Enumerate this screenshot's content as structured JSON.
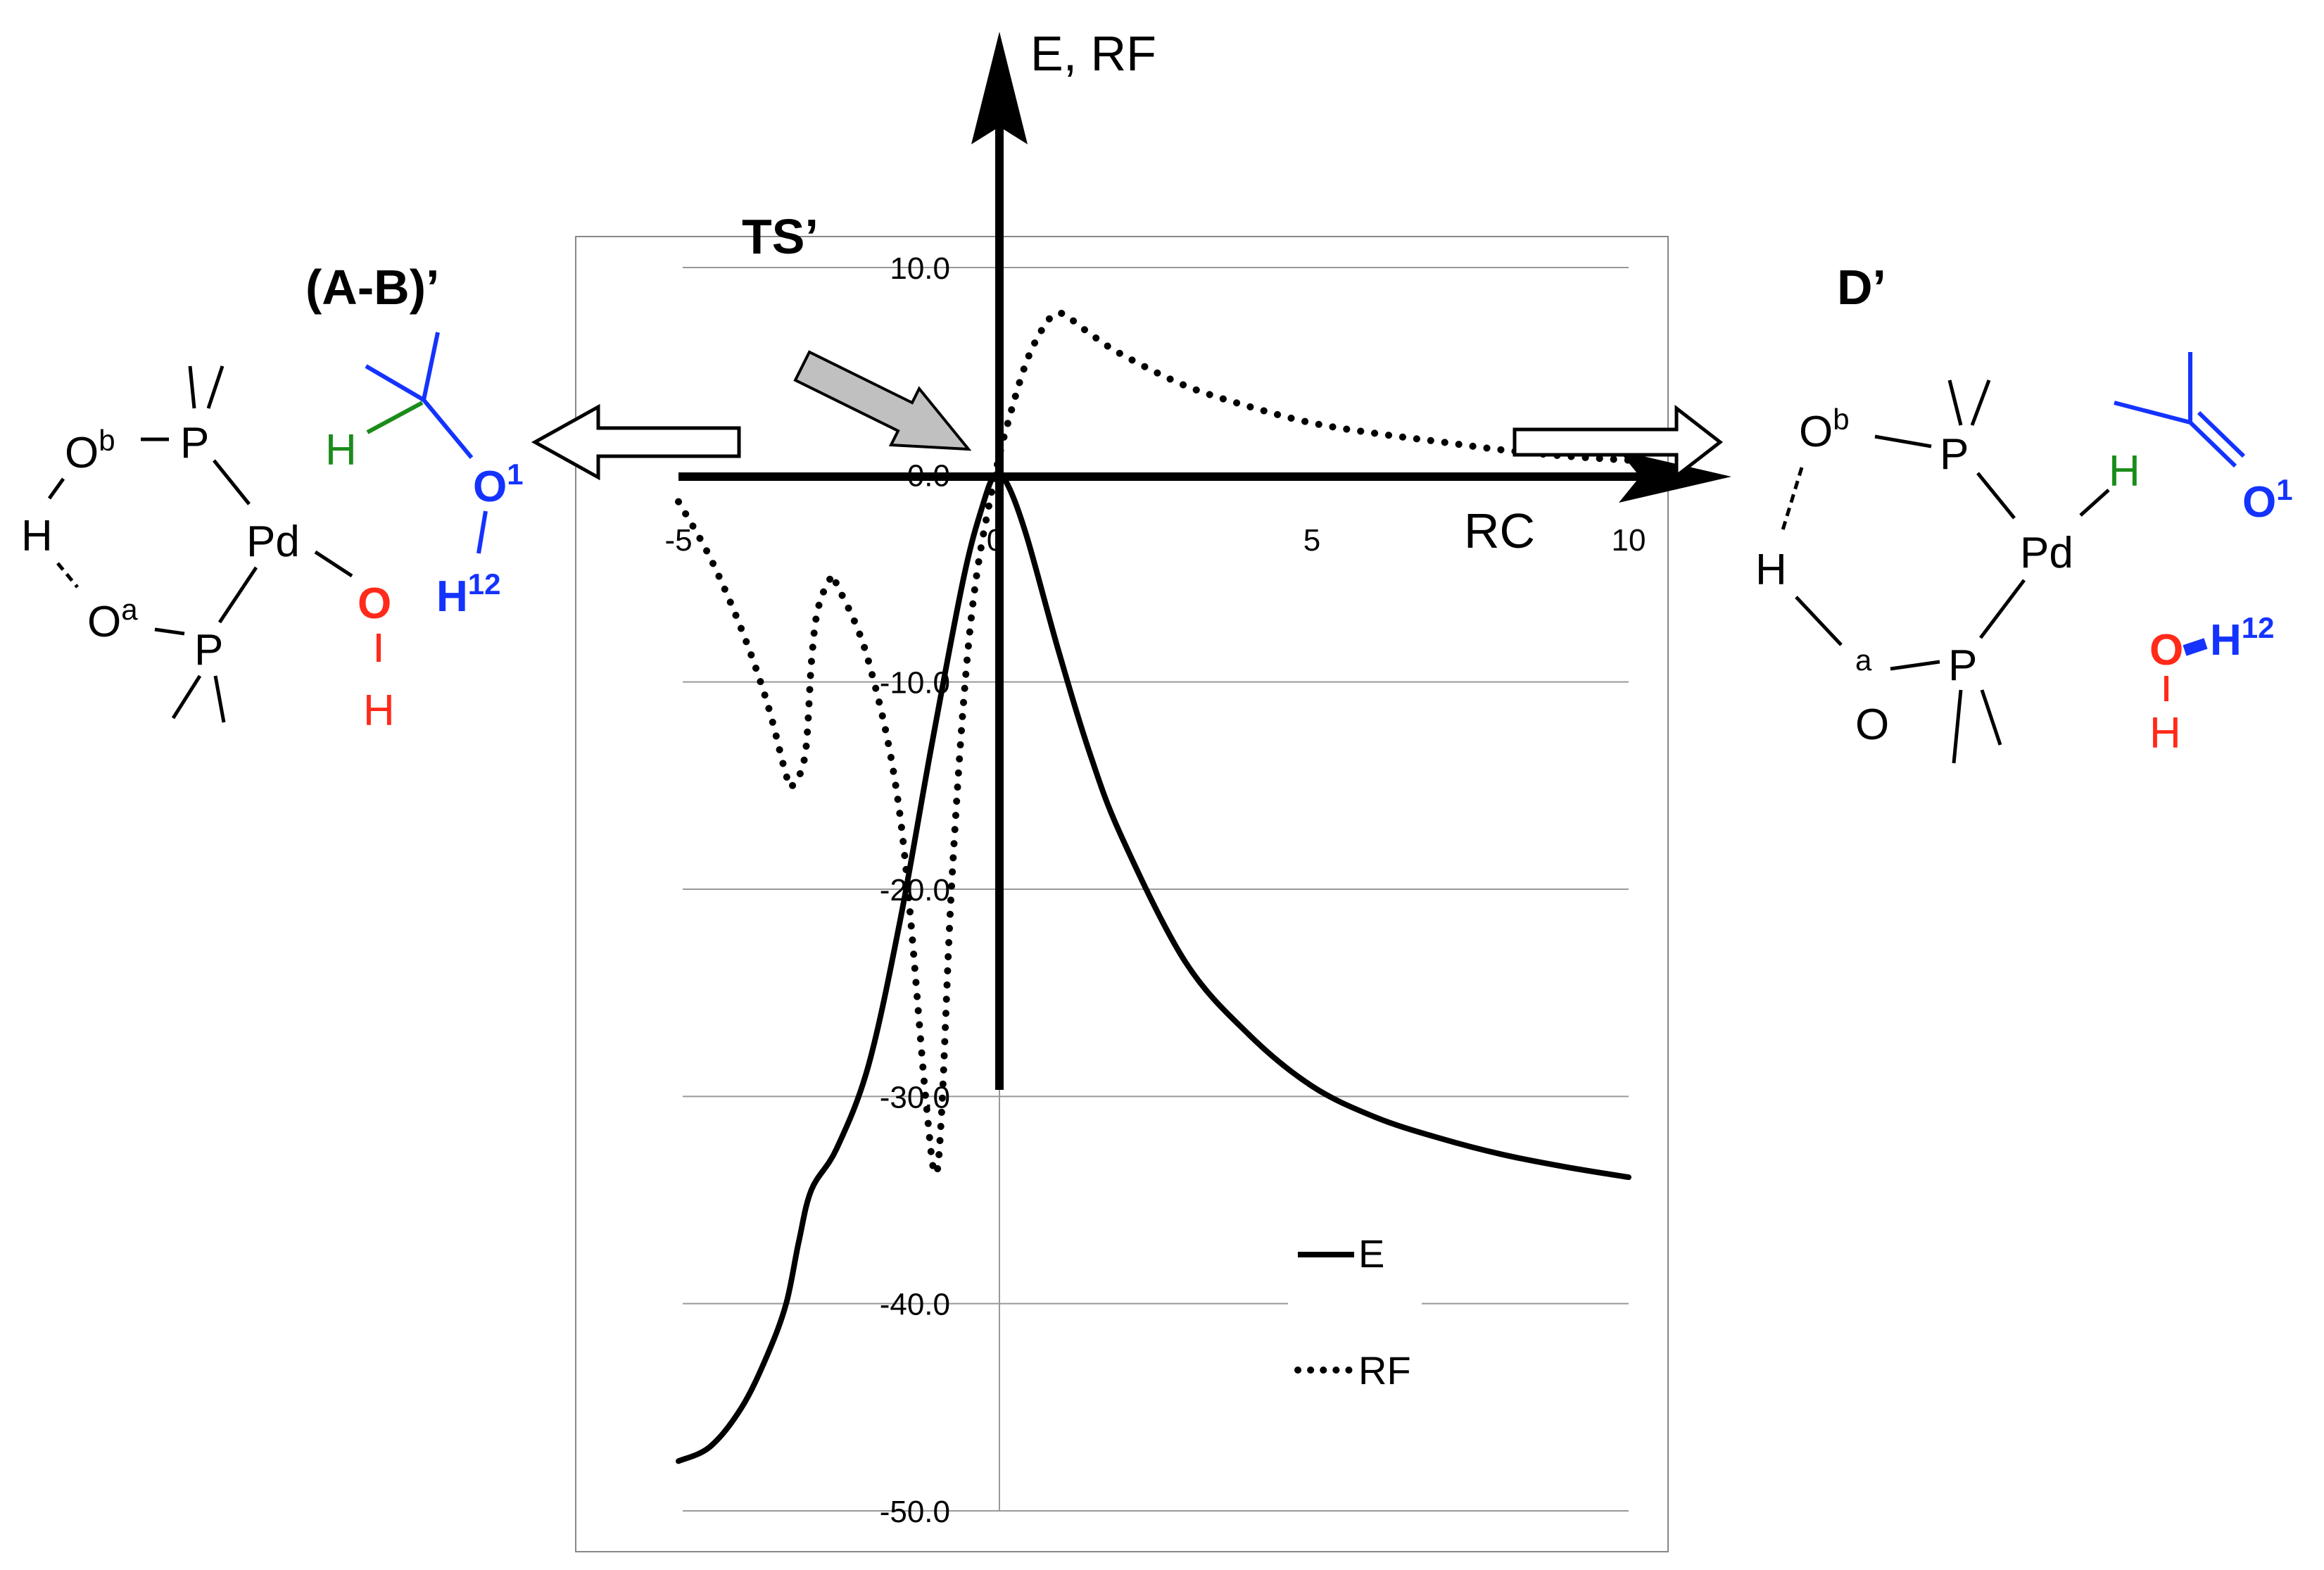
{
  "chart_data": {
    "type": "line",
    "title": "",
    "xlabel": "RC",
    "ylabel": "E, RF",
    "xlim": [
      -5,
      10
    ],
    "ylim": [
      -50,
      10
    ],
    "x_ticks": [
      "-5",
      "0",
      "5",
      "10"
    ],
    "y_ticks": [
      "10.0",
      "0.0",
      "-10.0",
      "-20.0",
      "-30.0",
      "-40.0",
      "-50.0"
    ],
    "grid": "horizontal",
    "legend_position": "bottom-right",
    "series": [
      {
        "name": "E",
        "style": "solid",
        "x": [
          -5.0,
          -4.5,
          -4.0,
          -3.6,
          -3.3,
          -3.1,
          -2.9,
          -2.5,
          -2.0,
          -1.5,
          -1.0,
          -0.5,
          -0.2,
          0.0,
          0.2,
          0.5,
          1.0,
          1.5,
          2.0,
          3.0,
          4.0,
          5.0,
          6.0,
          7.0,
          8.0,
          9.0,
          10.0
        ],
        "y": [
          -47.6,
          -46.9,
          -45.0,
          -42.5,
          -40.0,
          -37.0,
          -34.5,
          -32.5,
          -28.5,
          -21.5,
          -13.0,
          -5.0,
          -1.5,
          0.0,
          -0.5,
          -3.0,
          -8.5,
          -13.5,
          -17.5,
          -23.5,
          -27.0,
          -29.5,
          -31.0,
          -32.0,
          -32.8,
          -33.4,
          -33.9
        ]
      },
      {
        "name": "RF",
        "style": "dotted",
        "x": [
          -5.0,
          -4.5,
          -4.0,
          -3.6,
          -3.3,
          -3.2,
          -3.0,
          -2.9,
          -2.8,
          -2.6,
          -2.5,
          -2.0,
          -1.5,
          -1.1,
          -0.95,
          -0.85,
          -0.7,
          -0.5,
          -0.3,
          0.0,
          0.2,
          0.5,
          0.8,
          1.0,
          1.2,
          1.5,
          2.0,
          3.0,
          4.0,
          5.0,
          6.0,
          7.0,
          8.0,
          9.0,
          10.0
        ],
        "y": [
          -1.3,
          -4.0,
          -7.5,
          -11.0,
          -14.5,
          -15.0,
          -13.5,
          -9.0,
          -6.5,
          -5.0,
          -5.3,
          -9.0,
          -16.5,
          -30.0,
          -33.7,
          -31.0,
          -20.5,
          -11.0,
          -5.0,
          0.0,
          2.5,
          5.5,
          7.3,
          7.8,
          7.5,
          6.8,
          5.8,
          4.3,
          3.3,
          2.5,
          2.0,
          1.6,
          1.2,
          0.9,
          0.7
        ]
      }
    ]
  },
  "legend": {
    "e_label": "E",
    "rf_label": "RF"
  },
  "annotations": {
    "ts_label": "TS’",
    "left_species_label": "(A-B)’",
    "right_species_label": "D’"
  },
  "left_structure": {
    "o_b": "O",
    "sup_b": "b",
    "p_top": "P",
    "h_bridge": "H",
    "pd": "Pd",
    "o_a": "O",
    "sup_a": "a",
    "p_bottom": "P",
    "o_red": "O",
    "h_red": "H",
    "h_green": "H",
    "o1": "O",
    "o1_sup": "1",
    "h12": "H",
    "h12_sup": "12"
  },
  "right_structure": {
    "o_b": "O",
    "sup_b": "b",
    "p_top": "P",
    "h_green": "H",
    "pd": "Pd",
    "h_bridge": "H",
    "sup_a": "a",
    "o_a": "O",
    "p_bottom": "P",
    "o1": "O",
    "o1_sup": "1",
    "o_red": "O",
    "h12": "H",
    "h12_sup": "12",
    "h_red": "H"
  },
  "colors": {
    "black": "#000000",
    "blue": "#1433ff",
    "red": "#ff2a1a",
    "green": "#1a8c1a",
    "arrow_gray": "#c0c0c0"
  }
}
